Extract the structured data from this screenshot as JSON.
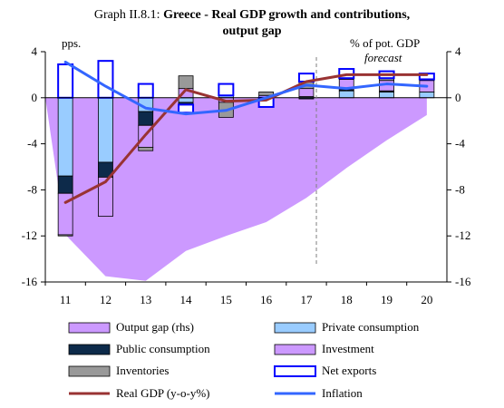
{
  "chart_data": {
    "type": "bar",
    "title_prefix": "Graph II.8.1:",
    "title_line1": "Greece - Real GDP growth and contributions,",
    "title_line2": "output gap",
    "ylabel_left": "pps.",
    "ylabel_right": "% of pot. GDP",
    "forecast_label": "forecast",
    "forecast_start": "17",
    "categories": [
      "11",
      "12",
      "13",
      "14",
      "15",
      "16",
      "17",
      "18",
      "19",
      "20"
    ],
    "ylim": [
      -16,
      4
    ],
    "yticks": [
      -16,
      -12,
      -8,
      -4,
      0,
      4
    ],
    "colors": {
      "output_gap": "#cc99ff",
      "private_consumption": "#99ccff",
      "public_consumption": "#0d2a4a",
      "investment": "#cc99ff",
      "inventories": "#999999",
      "net_exports": "#0000ff",
      "real_gdp": "#993333",
      "inflation": "#3366ff"
    },
    "area_series": {
      "name": "Output gap (rhs)",
      "values": [
        -11.9,
        -15.5,
        -15.9,
        -13.3,
        -12.0,
        -10.8,
        -8.7,
        -6.1,
        -3.7,
        -1.5
      ]
    },
    "stacked_series": [
      {
        "name": "Private consumption",
        "key": "private_consumption",
        "values": [
          -6.8,
          -5.6,
          -1.2,
          -0.4,
          0.2,
          0.0,
          0.1,
          0.6,
          0.5,
          0.5
        ]
      },
      {
        "name": "Public consumption",
        "key": "public_consumption",
        "values": [
          -1.5,
          -1.3,
          -1.2,
          -0.2,
          0.0,
          0.0,
          -0.1,
          0.1,
          0.1,
          0.0
        ]
      },
      {
        "name": "Investment",
        "key": "investment",
        "values": [
          -3.6,
          -3.4,
          -1.9,
          0.8,
          -0.4,
          0.2,
          0.7,
          0.9,
          0.9,
          1.0
        ]
      },
      {
        "name": "Inventories",
        "key": "inventories",
        "values": [
          -0.1,
          0.0,
          -0.3,
          1.1,
          -1.3,
          0.3,
          0.6,
          0.1,
          0.2,
          0.1
        ]
      },
      {
        "name": "Net exports",
        "key": "net_exports",
        "values": [
          2.9,
          3.2,
          1.2,
          -0.7,
          1.0,
          -0.8,
          0.7,
          0.8,
          0.6,
          0.5
        ]
      }
    ],
    "line_series": [
      {
        "name": "Real GDP (y-o-y%)",
        "key": "real_gdp",
        "values": [
          -9.1,
          -7.3,
          -3.2,
          0.7,
          -0.3,
          -0.2,
          1.4,
          2.0,
          2.0,
          2.0
        ]
      },
      {
        "name": "Inflation",
        "key": "inflation",
        "values": [
          3.1,
          1.0,
          -0.9,
          -1.4,
          -1.1,
          0.0,
          1.1,
          0.8,
          1.2,
          1.0
        ]
      }
    ],
    "legend": [
      {
        "label": "Output gap (rhs)",
        "key": "output_gap",
        "kind": "fill"
      },
      {
        "label": "Private consumption",
        "key": "private_consumption",
        "kind": "fill"
      },
      {
        "label": "Public consumption",
        "key": "public_consumption",
        "kind": "fill"
      },
      {
        "label": "Investment",
        "key": "investment",
        "kind": "fill"
      },
      {
        "label": "Inventories",
        "key": "inventories",
        "kind": "fill"
      },
      {
        "label": "Net exports",
        "key": "net_exports",
        "kind": "outline"
      },
      {
        "label": "Real GDP (y-o-y%)",
        "key": "real_gdp",
        "kind": "line"
      },
      {
        "label": "Inflation",
        "key": "inflation",
        "kind": "line"
      }
    ]
  }
}
